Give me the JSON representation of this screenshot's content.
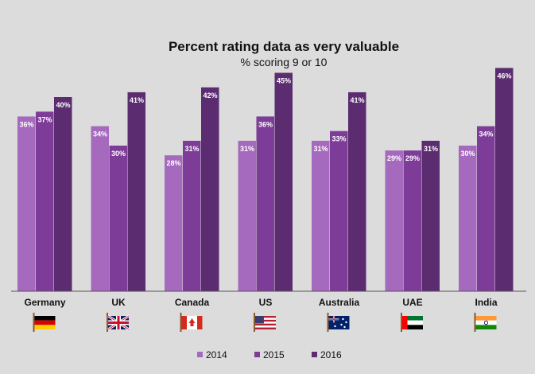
{
  "chart_data": {
    "type": "bar",
    "title": "Percent rating data as very valuable",
    "subtitle": "% scoring 9 or 10",
    "categories": [
      "Germany",
      "UK",
      "Canada",
      "US",
      "Australia",
      "UAE",
      "India"
    ],
    "flag_icons": [
      "germany-flag-icon",
      "uk-flag-icon",
      "canada-flag-icon",
      "us-flag-icon",
      "australia-flag-icon",
      "uae-flag-icon",
      "india-flag-icon"
    ],
    "series": [
      {
        "name": "2014",
        "color": "#a569bd",
        "values": [
          36,
          34,
          28,
          31,
          31,
          29,
          30
        ]
      },
      {
        "name": "2015",
        "color": "#7d3c98",
        "values": [
          37,
          30,
          31,
          36,
          33,
          29,
          34
        ]
      },
      {
        "name": "2016",
        "color": "#5b2c6f",
        "values": [
          40,
          41,
          42,
          45,
          41,
          31,
          46
        ]
      }
    ],
    "value_suffix": "%",
    "ylim": [
      0,
      50
    ],
    "grid": false,
    "legend_position": "bottom"
  }
}
